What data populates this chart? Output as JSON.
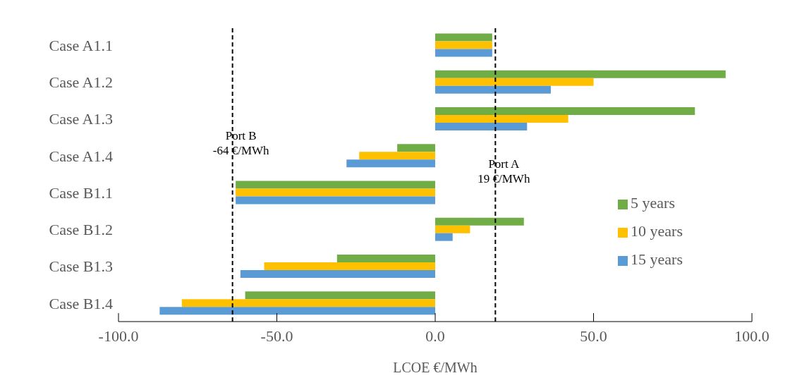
{
  "chart_data": {
    "type": "bar",
    "orientation": "horizontal",
    "xlabel": "LCOE €/MWh",
    "categories": [
      "Case A1.1",
      "Case A1.2",
      "Case A1.3",
      "Case A1.4",
      "Case B1.1",
      "Case B1.2",
      "Case B1.3",
      "Case B1.4"
    ],
    "series": [
      {
        "name": "5 years",
        "color": "#70ad47",
        "values": [
          18,
          91.7,
          82,
          -12,
          -63,
          28,
          -31,
          -60
        ]
      },
      {
        "name": "10 years",
        "color": "#ffc000",
        "values": [
          18,
          50,
          42,
          -24,
          -63,
          11,
          -54,
          -80
        ]
      },
      {
        "name": "15 years",
        "color": "#5b9bd5",
        "values": [
          18,
          36.5,
          29,
          -28,
          -63,
          5.5,
          -61.5,
          -87
        ]
      }
    ],
    "xlim": [
      -100,
      100
    ],
    "xticks": [
      {
        "value": -100,
        "label": "-100.0"
      },
      {
        "value": -50,
        "label": "-50.0"
      },
      {
        "value": 0,
        "label": "0.0"
      },
      {
        "value": 50,
        "label": "50.0"
      },
      {
        "value": 100,
        "label": "100.0"
      }
    ],
    "ref_lines": [
      {
        "axis": "x",
        "value": 19,
        "label": "Port A\n19 €/MWh",
        "color": "#000000",
        "line_style": "dashed"
      },
      {
        "axis": "x",
        "value": -64,
        "label": "Port B\n-64 €/MWh",
        "color": "#000000",
        "line_style": "dashed"
      }
    ],
    "legend": "right"
  }
}
